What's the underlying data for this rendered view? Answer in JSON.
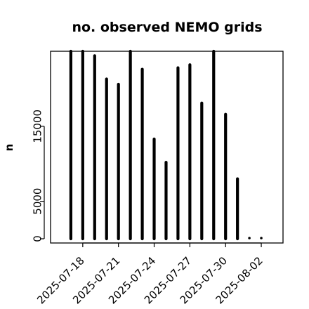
{
  "chart_data": {
    "type": "bar",
    "title": "no. observed NEMO grids",
    "xlabel": "",
    "ylabel": "n",
    "xlim": [
      "2025-07-15",
      "2025-08-03"
    ],
    "ylim": [
      0,
      25000
    ],
    "y_ticks": [
      0,
      5000,
      15000
    ],
    "y_tick_labels": [
      "0",
      "5000",
      "15000"
    ],
    "x_ticks": [
      "2025-07-18",
      "2025-07-21",
      "2025-07-24",
      "2025-07-27",
      "2025-07-30",
      "2025-08-02"
    ],
    "x_tick_labels": [
      "2025-07-18",
      "2025-07-21",
      "2025-07-24",
      "2025-07-27",
      "2025-07-30",
      "2025-08-02"
    ],
    "grid": false,
    "categories": [
      "2025-07-17",
      "2025-07-18",
      "2025-07-19",
      "2025-07-20",
      "2025-07-21",
      "2025-07-22",
      "2025-07-23",
      "2025-07-24",
      "2025-07-25",
      "2025-07-26",
      "2025-07-27",
      "2025-07-28",
      "2025-07-29",
      "2025-07-30",
      "2025-07-31",
      "2025-08-01",
      "2025-08-02"
    ],
    "values": [
      25000,
      25000,
      24400,
      21300,
      20600,
      25000,
      22600,
      13300,
      10200,
      22800,
      23200,
      18100,
      25000,
      16600,
      8000,
      0,
      0
    ]
  }
}
